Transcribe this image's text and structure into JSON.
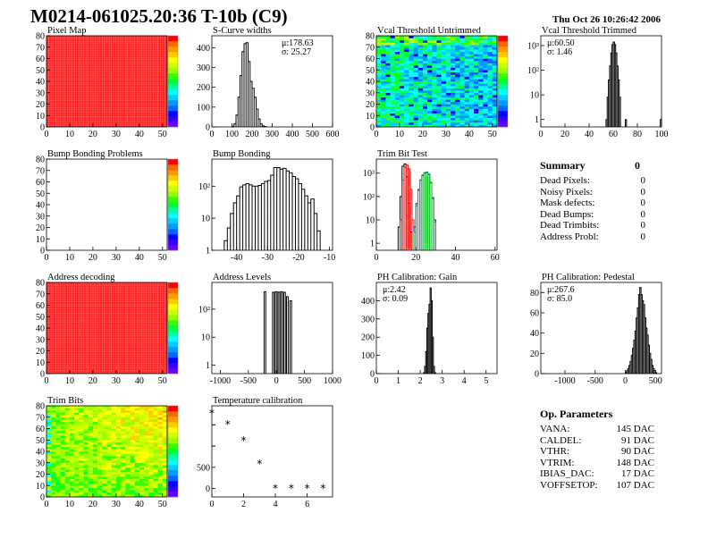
{
  "header": {
    "title": "M0214-061025.20:36 T-10b (C9)",
    "date": "Thu Oct 26 10:26:42 2006"
  },
  "summary": {
    "title": "Summary",
    "total": "0",
    "items": [
      {
        "label": "Dead Pixels:",
        "value": "0"
      },
      {
        "label": "Noisy Pixels:",
        "value": "0"
      },
      {
        "label": "Mask defects:",
        "value": "0"
      },
      {
        "label": "Dead Bumps:",
        "value": "0"
      },
      {
        "label": "Dead Trimbits:",
        "value": "0"
      },
      {
        "label": "Address Probl:",
        "value": "0"
      }
    ]
  },
  "op_parameters": {
    "title": "Op. Parameters",
    "items": [
      {
        "label": "VANA:",
        "value": "145 DAC"
      },
      {
        "label": "CALDEL:",
        "value": "91 DAC"
      },
      {
        "label": "VTHR:",
        "value": "90 DAC"
      },
      {
        "label": "VTRIM:",
        "value": "148 DAC"
      },
      {
        "label": "IBIAS_DAC:",
        "value": "17 DAC"
      },
      {
        "label": "VOFFSETOP:",
        "value": "107 DAC"
      }
    ]
  },
  "colors": {
    "frame": "#000000",
    "hist_line": "#000000",
    "red": "#ff0000",
    "blue": "#0000ff",
    "green": "#00cc00"
  },
  "chart_data": [
    {
      "type": "heatmap",
      "title": "Pixel Map",
      "xlim": [
        0,
        52
      ],
      "ylim": [
        0,
        80
      ],
      "xticks": [
        0,
        10,
        20,
        30,
        40,
        50
      ],
      "yticks": [
        0,
        10,
        20,
        30,
        40,
        50,
        60,
        70,
        80
      ],
      "zlim": [
        0,
        10
      ],
      "field": "uniform",
      "zvalue": 10
    },
    {
      "type": "bar",
      "title": "S-Curve widths",
      "xlim": [
        0,
        600
      ],
      "ylim": [
        0,
        460
      ],
      "xticks": [
        0,
        100,
        200,
        300,
        400,
        500,
        600
      ],
      "yticks": [
        0,
        100,
        200,
        300,
        400
      ],
      "log": false,
      "stats": [
        "μ:178.63",
        "σ: 25.27"
      ],
      "series": [
        {
          "bin_width": 10,
          "x": [
            100,
            110,
            120,
            130,
            140,
            150,
            160,
            170,
            180,
            190,
            200,
            210,
            220,
            230,
            240,
            250,
            260
          ],
          "values": [
            3,
            15,
            60,
            150,
            260,
            380,
            420,
            425,
            330,
            230,
            195,
            150,
            90,
            40,
            15,
            5,
            2
          ]
        }
      ]
    },
    {
      "type": "heatmap",
      "title": "Vcal Threshold Untrimmed",
      "xlim": [
        0,
        52
      ],
      "ylim": [
        0,
        80
      ],
      "xticks": [
        0,
        10,
        20,
        30,
        40,
        50
      ],
      "yticks": [
        0,
        10,
        20,
        30,
        40,
        50,
        60,
        70,
        80
      ],
      "zlim": [
        90,
        130
      ],
      "field": "vcal"
    },
    {
      "type": "bar",
      "title": "Vcal Threshold Trimmed",
      "xlim": [
        0,
        100
      ],
      "ylim": [
        0.5,
        2500
      ],
      "xticks": [
        0,
        20,
        40,
        60,
        80,
        100
      ],
      "yticks": [
        1,
        10,
        100,
        1000
      ],
      "log": true,
      "stats": [
        "μ:60.50",
        "σ: 1.46"
      ],
      "series": [
        {
          "bin_width": 1,
          "x": [
            54,
            55,
            56,
            57,
            58,
            59,
            60,
            61,
            62,
            63,
            64,
            65,
            70,
            99
          ],
          "values": [
            1,
            8,
            40,
            150,
            500,
            1100,
            1400,
            1100,
            500,
            150,
            40,
            8,
            1,
            1
          ]
        }
      ]
    },
    {
      "type": "heatmap",
      "title": "Bump Bonding Problems",
      "xlim": [
        0,
        52
      ],
      "ylim": [
        0,
        80
      ],
      "xticks": [
        0,
        10,
        20,
        30,
        40,
        50
      ],
      "yticks": [
        0,
        10,
        20,
        30,
        40,
        50,
        60,
        70,
        80
      ],
      "zlim": [
        -2,
        2
      ],
      "field": "empty"
    },
    {
      "type": "bar",
      "title": "Bump Bonding",
      "xlim": [
        -48,
        -9
      ],
      "ylim": [
        1,
        700
      ],
      "xticks": [
        -40,
        -30,
        -20,
        -10
      ],
      "yticks": [
        1,
        10,
        100
      ],
      "log": true,
      "series": [
        {
          "bin_width": 1,
          "x": [
            -44,
            -43,
            -42,
            -41,
            -40,
            -39,
            -38,
            -37,
            -36,
            -35,
            -34,
            -33,
            -32,
            -31,
            -30,
            -29,
            -28,
            -27,
            -26,
            -25,
            -24,
            -23,
            -22,
            -21,
            -20,
            -19,
            -18,
            -17,
            -16,
            -15,
            -14
          ],
          "values": [
            2,
            5,
            14,
            30,
            50,
            95,
            110,
            120,
            110,
            100,
            100,
            105,
            120,
            140,
            150,
            220,
            380,
            380,
            340,
            360,
            300,
            260,
            200,
            170,
            120,
            80,
            50,
            30,
            40,
            14,
            4
          ]
        }
      ]
    },
    {
      "type": "bar",
      "title": "Trim Bit Test",
      "xlim": [
        0,
        61
      ],
      "ylim": [
        0.5,
        4000
      ],
      "xticks": [
        0,
        20,
        40,
        60
      ],
      "yticks": [
        1,
        10,
        100,
        1000
      ],
      "log": true,
      "series": [
        {
          "color": "#000000",
          "bin_width": 1,
          "x": [
            11,
            12,
            13,
            14,
            15,
            16,
            17
          ],
          "values": [
            5,
            100,
            2000,
            2500,
            700,
            50,
            3
          ]
        },
        {
          "color": "#ff0000",
          "bin_width": 1,
          "x": [
            12,
            13,
            14,
            15,
            16,
            17,
            18
          ],
          "values": [
            10,
            500,
            1800,
            2200,
            1500,
            200,
            10
          ]
        },
        {
          "color": "#0000ff",
          "bin_width": 1,
          "x": [
            19,
            20,
            21,
            22,
            23,
            24,
            25,
            26,
            27,
            28,
            29
          ],
          "values": [
            5,
            50,
            200,
            500,
            800,
            1000,
            1100,
            900,
            400,
            90,
            10
          ]
        },
        {
          "color": "#00cc00",
          "bin_width": 1,
          "x": [
            19,
            20,
            21,
            22,
            23,
            24,
            25,
            26,
            27,
            28,
            29
          ],
          "values": [
            3,
            40,
            180,
            520,
            850,
            1050,
            1050,
            850,
            380,
            80,
            8
          ]
        }
      ]
    },
    {
      "type": "heatmap",
      "title": "Address decoding",
      "xlim": [
        0,
        52
      ],
      "ylim": [
        0,
        80
      ],
      "xticks": [
        0,
        10,
        20,
        30,
        40,
        50
      ],
      "yticks": [
        0,
        10,
        20,
        30,
        40,
        50,
        60,
        70,
        80
      ],
      "zlim": [
        0,
        1
      ],
      "field": "uniform",
      "zvalue": 1
    },
    {
      "type": "bar",
      "title": "Address Levels",
      "xlim": [
        -1150,
        1000
      ],
      "ylim": [
        0.5,
        900
      ],
      "xticks": [
        -1000,
        -500,
        0,
        500,
        1000
      ],
      "yticks": [
        1,
        10,
        100
      ],
      "log": true,
      "series": [
        {
          "bin_width": 30,
          "x": [
            -220,
            -70,
            -20,
            30,
            80,
            130,
            180,
            240
          ],
          "values": [
            420,
            400,
            420,
            410,
            420,
            400,
            280,
            200
          ]
        }
      ]
    },
    {
      "type": "bar",
      "title": "PH Calibration: Gain",
      "xlim": [
        0,
        5.5
      ],
      "ylim": [
        0,
        500
      ],
      "xticks": [
        0,
        1,
        2,
        3,
        4,
        5
      ],
      "yticks": [
        0,
        100,
        200,
        300,
        400
      ],
      "log": false,
      "stats": [
        "μ:2.42",
        "σ: 0.09"
      ],
      "series": [
        {
          "bin_width": 0.05,
          "x": [
            2.15,
            2.2,
            2.25,
            2.3,
            2.35,
            2.4,
            2.45,
            2.5,
            2.55,
            2.6,
            2.65
          ],
          "values": [
            5,
            40,
            120,
            250,
            330,
            380,
            470,
            400,
            200,
            40,
            5
          ]
        }
      ]
    },
    {
      "type": "bar",
      "title": "PH Calibration: Pedestal",
      "xlim": [
        -1400,
        600
      ],
      "ylim": [
        0,
        90
      ],
      "xticks": [
        -1000,
        -500,
        0,
        500
      ],
      "yticks": [
        0,
        20,
        40,
        60,
        80
      ],
      "log": false,
      "stats": [
        "μ:267.6",
        "σ: 85.0"
      ],
      "series": [
        {
          "bin_width": 20,
          "x": [
            0,
            20,
            40,
            60,
            80,
            100,
            120,
            140,
            160,
            180,
            200,
            220,
            240,
            260,
            280,
            300,
            320,
            340,
            360,
            380,
            400,
            420,
            440,
            460,
            480,
            500
          ],
          "values": [
            1,
            3,
            5,
            8,
            12,
            18,
            25,
            33,
            42,
            55,
            65,
            78,
            85,
            78,
            72,
            68,
            55,
            45,
            38,
            28,
            20,
            14,
            8,
            5,
            3,
            1
          ]
        }
      ]
    },
    {
      "type": "heatmap",
      "title": "Trim Bits",
      "xlim": [
        0,
        52
      ],
      "ylim": [
        0,
        80
      ],
      "xticks": [
        0,
        10,
        20,
        30,
        40,
        50
      ],
      "yticks": [
        0,
        10,
        20,
        30,
        40,
        50,
        60,
        70,
        80
      ],
      "zlim": [
        0,
        16
      ],
      "field": "trim"
    },
    {
      "type": "scatter",
      "title": "Temperature calibration",
      "xlim": [
        0,
        7.6
      ],
      "ylim": [
        -200,
        1950
      ],
      "xticks": [
        0,
        2,
        4,
        6
      ],
      "yticks": [
        0,
        500
      ],
      "marker": "star",
      "x": [
        0,
        1,
        2,
        3,
        4,
        5,
        6,
        7
      ],
      "y": [
        1770,
        1510,
        1130,
        580,
        0,
        0,
        0,
        0
      ]
    }
  ]
}
